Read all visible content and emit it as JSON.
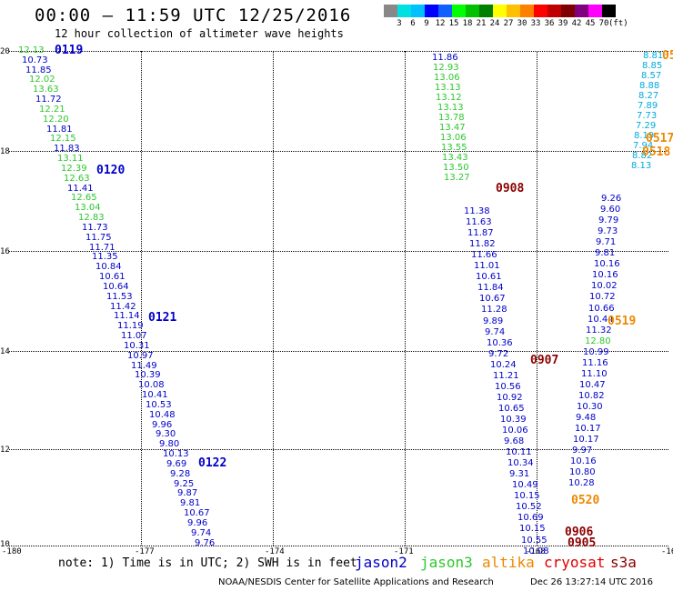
{
  "header": {
    "title": "00:00 – 11:59 UTC 12/25/2016",
    "subtitle": "12 hour collection of altimeter wave heights"
  },
  "scale": {
    "colors": [
      "#888888",
      "#00e0e0",
      "#00c0ff",
      "#0000ff",
      "#1060ff",
      "#00ff00",
      "#00c000",
      "#008000",
      "#ffff00",
      "#ffc000",
      "#ff8000",
      "#ff0000",
      "#c00000",
      "#800000",
      "#800080",
      "#ff00ff",
      "#000000"
    ],
    "labels": [
      "3",
      "6",
      "9",
      "12",
      "15",
      "18",
      "21",
      "24",
      "27",
      "30",
      "33",
      "36",
      "39",
      "42",
      "45",
      "70",
      "(ft)"
    ]
  },
  "axes": {
    "lat_labels": [
      "20",
      "18",
      "16",
      "14",
      "12",
      "10"
    ],
    "lon_labels": [
      "-180",
      "-177",
      "-174",
      "-171",
      "-168",
      "-16"
    ]
  },
  "tracks": {
    "track_a": {
      "values": [
        "12.13",
        "10.73",
        "11.85",
        "12.02",
        "13.63",
        "11.72",
        "12.21",
        "12.20",
        "11.81",
        "12.15",
        "11.83",
        "13.11",
        "12.39",
        "12.63",
        "11.41",
        "12.65",
        "13.04",
        "12.83",
        "11.73",
        "11.75",
        "11.71",
        "11.35",
        "10.84",
        "10.61",
        "10.64",
        "11.53",
        "11.42",
        "11.14",
        "11.19",
        "11.07",
        "10.31",
        "10.97",
        "11.49",
        "10.39",
        "10.08",
        "10.41",
        "10.53",
        "10.48",
        "9.96",
        "9.30",
        "9.80",
        "10.13",
        "9.69",
        "9.28",
        "9.25",
        "9.87",
        "9.81",
        "10.67",
        "9.96",
        "9.74",
        "9.76"
      ],
      "colors": [
        "j3",
        "j2",
        "j2",
        "j3",
        "j3",
        "j2",
        "j3",
        "j3",
        "j2",
        "j3",
        "j2",
        "j3",
        "j3",
        "j3",
        "j2",
        "j3",
        "j3",
        "j3",
        "j2",
        "j2",
        "j2",
        "j2",
        "j2",
        "j2",
        "j2",
        "j2",
        "j2",
        "j2",
        "j2",
        "j2",
        "j2",
        "j2",
        "j2",
        "j2",
        "j2",
        "j2",
        "j2",
        "j2",
        "j2",
        "j2",
        "j2",
        "j2",
        "j2",
        "j2",
        "j2",
        "j2",
        "j2",
        "j2",
        "j2",
        "j2",
        "j2"
      ]
    },
    "track_b_top": {
      "values": [
        "11.86",
        "12.93",
        "13.06",
        "13.13",
        "13.12",
        "13.13",
        "13.78",
        "13.47",
        "13.06",
        "13.55",
        "13.43",
        "13.50",
        "13.27"
      ],
      "colors": [
        "j2",
        "j3",
        "j3",
        "j3",
        "j3",
        "j3",
        "j3",
        "j3",
        "j3",
        "j3",
        "j3",
        "j3",
        "j3"
      ]
    },
    "track_b": {
      "values": [
        "11.38",
        "11.63",
        "11.87",
        "11.82",
        "11.66",
        "11.01",
        "10.61",
        "11.84",
        "10.67",
        "11.28",
        "9.89",
        "9.74",
        "10.36",
        "9.72",
        "10.24",
        "11.21",
        "10.56",
        "10.92",
        "10.65",
        "10.39",
        "10.06",
        "9.68",
        "10.11",
        "10.34",
        "9.31",
        "10.49",
        "10.15",
        "10.52",
        "10.69",
        "10.15",
        "10.55",
        "10.08"
      ],
      "colors": [
        "j2",
        "j2",
        "j2",
        "j2",
        "j2",
        "j2",
        "j2",
        "j2",
        "j2",
        "j2",
        "j2",
        "j2",
        "j2",
        "j2",
        "j2",
        "j2",
        "j2",
        "j2",
        "j2",
        "j2",
        "j2",
        "j2",
        "j2",
        "j2",
        "j2",
        "j2",
        "j2",
        "j2",
        "j2",
        "j2",
        "j2",
        "j2"
      ]
    },
    "track_c_top": {
      "values": [
        "8.81",
        "8.85",
        "8.57",
        "8.88",
        "8.27",
        "7.89",
        "7.73",
        "7.29",
        "8.19",
        "7.94",
        "8.82",
        "8.13"
      ],
      "colors": [
        "cy",
        "cy",
        "cy",
        "cy",
        "cy",
        "cy",
        "cy",
        "cy",
        "cy",
        "cy",
        "cy",
        "cy"
      ]
    },
    "track_c": {
      "values": [
        "9.26",
        "9.60",
        "9.79",
        "9.73",
        "9.71",
        "9.81",
        "10.16",
        "10.16",
        "10.02",
        "10.72",
        "10.66",
        "10.44",
        "11.32",
        "12.80",
        "10.99",
        "11.16",
        "11.10",
        "10.47",
        "10.82",
        "10.30",
        "9.48",
        "10.17",
        "10.17",
        "9.97",
        "10.16",
        "10.80",
        "10.28"
      ],
      "colors": [
        "j2",
        "j2",
        "j2",
        "j2",
        "j2",
        "j2",
        "j2",
        "j2",
        "j2",
        "j2",
        "j2",
        "j2",
        "j2",
        "j3",
        "j2",
        "j2",
        "j2",
        "j2",
        "j2",
        "j2",
        "j2",
        "j2",
        "j2",
        "j2",
        "j2",
        "j2",
        "j2"
      ]
    }
  },
  "pass_labels": [
    {
      "text": "0119",
      "color": "j2"
    },
    {
      "text": "0120",
      "color": "j2"
    },
    {
      "text": "0121",
      "color": "j2"
    },
    {
      "text": "0122",
      "color": "j2"
    },
    {
      "text": "0908",
      "color": "cry"
    },
    {
      "text": "0907",
      "color": "cry"
    },
    {
      "text": "0906",
      "color": "cry"
    },
    {
      "text": "0905",
      "color": "cry"
    },
    {
      "text": "0519",
      "color": "alt"
    },
    {
      "text": "0520",
      "color": "alt"
    },
    {
      "text": "0517",
      "color": "alt"
    },
    {
      "text": "0518",
      "color": "alt"
    },
    {
      "text": "05",
      "color": "alt"
    }
  ],
  "footer": {
    "note": "note: 1) Time is in UTC; 2) SWH is in feet",
    "legend": [
      {
        "text": "jason2",
        "color": "#0000c8"
      },
      {
        "text": "jason3",
        "color": "#2cc82c"
      },
      {
        "text": "altika",
        "color": "#ee8800"
      },
      {
        "text": "cryosat",
        "color": "#e00000"
      },
      {
        "text": "s3a",
        "color": "#8b0000"
      }
    ],
    "credit": "NOAA/NESDIS Center for Satellite Applications and Research",
    "timestamp": "Dec 26 13:27:14 UTC 2016"
  }
}
